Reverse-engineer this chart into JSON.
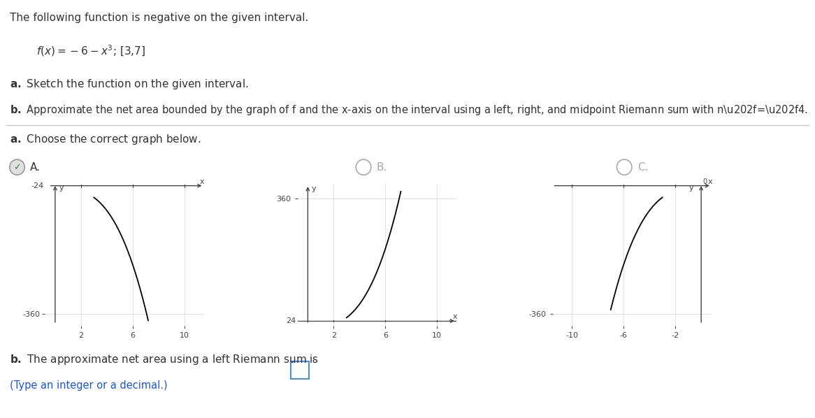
{
  "title_text": "The following function is negative on the given interval.",
  "func_label": "f(x) = − 6 − x³; [3,7]",
  "part_a_label": "a. Sketch the function on the given interval.",
  "part_b_label": "b. Approximate the net area bounded by the graph of f and the x-axis on the interval using a left, right, and midpoint Riemann sum with n = 4.",
  "choose_label": "a. Choose the correct graph below.",
  "graph_A_label": "A.",
  "graph_B_label": "B.",
  "graph_C_label": "C.",
  "bottom_b_text": "b. The approximate net area using a left Riemann sum is",
  "bottom_hint": "(Type an integer or a decimal.)",
  "bg_color": "#ffffff",
  "grid_color": "#cccccc",
  "axis_color": "#444444",
  "text_dark": "#333333",
  "text_blue": "#1a56db",
  "check_green": "#2e7d32",
  "radio_gray": "#aaaaaa"
}
